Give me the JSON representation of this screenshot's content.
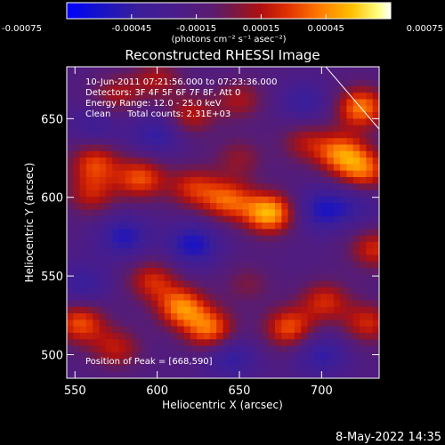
{
  "chart_data": {
    "type": "heatmap",
    "title": "Reconstructed RHESSI Image",
    "xlabel": "Heliocentric X (arcsec)",
    "ylabel": "Heliocentric Y (arcsec)",
    "xlim": [
      545,
      735
    ],
    "ylim": [
      485,
      683
    ],
    "x_ticks": [
      550,
      600,
      650,
      700
    ],
    "y_ticks": [
      500,
      550,
      600,
      650
    ],
    "colorbar": {
      "min": -0.00075,
      "max": 0.00075,
      "ticks": [
        "-0.00075",
        "-0.00045",
        "-0.00015",
        "0.00015",
        "0.00045",
        "0.00075"
      ],
      "units_label": "(photons cm⁻² s⁻¹ asec⁻²)",
      "stops": [
        {
          "v": 0.0,
          "color": "#0000ff"
        },
        {
          "v": 0.08,
          "color": "#1010d0"
        },
        {
          "v": 0.22,
          "color": "#3a1e9a"
        },
        {
          "v": 0.34,
          "color": "#4a1c8a"
        },
        {
          "v": 0.45,
          "color": "#5a1c70"
        },
        {
          "v": 0.52,
          "color": "#7a1840"
        },
        {
          "v": 0.6,
          "color": "#b01010"
        },
        {
          "v": 0.68,
          "color": "#e03000"
        },
        {
          "v": 0.78,
          "color": "#ff7a00"
        },
        {
          "v": 0.88,
          "color": "#ffc000"
        },
        {
          "v": 0.96,
          "color": "#ffff80"
        },
        {
          "v": 1.0,
          "color": "#ffffff"
        }
      ]
    },
    "sources": [
      {
        "x": 668,
        "y": 590,
        "amp": 0.00072
      },
      {
        "x": 643,
        "y": 598,
        "amp": 0.0005
      },
      {
        "x": 622,
        "y": 606,
        "amp": 0.0004
      },
      {
        "x": 590,
        "y": 612,
        "amp": 0.0005
      },
      {
        "x": 562,
        "y": 622,
        "amp": 0.00045
      },
      {
        "x": 560,
        "y": 602,
        "amp": 0.00035
      },
      {
        "x": 615,
        "y": 530,
        "amp": 0.0006
      },
      {
        "x": 632,
        "y": 516,
        "amp": 0.00055
      },
      {
        "x": 597,
        "y": 547,
        "amp": 0.0004
      },
      {
        "x": 553,
        "y": 520,
        "amp": 0.0005
      },
      {
        "x": 575,
        "y": 504,
        "amp": 0.00035
      },
      {
        "x": 680,
        "y": 517,
        "amp": 0.0005
      },
      {
        "x": 702,
        "y": 534,
        "amp": 0.0004
      },
      {
        "x": 728,
        "y": 520,
        "amp": 0.0004
      },
      {
        "x": 732,
        "y": 567,
        "amp": 0.0004
      },
      {
        "x": 712,
        "y": 628,
        "amp": 0.00055
      },
      {
        "x": 726,
        "y": 617,
        "amp": 0.0005
      },
      {
        "x": 724,
        "y": 657,
        "amp": 0.0006
      },
      {
        "x": 690,
        "y": 635,
        "amp": 0.0003
      },
      {
        "x": 620,
        "y": 652,
        "amp": 0.00035
      },
      {
        "x": 650,
        "y": 662,
        "amp": 0.0003
      },
      {
        "x": 575,
        "y": 665,
        "amp": 0.0003
      },
      {
        "x": 600,
        "y": 675,
        "amp": 0.0003
      },
      {
        "x": 650,
        "y": 625,
        "amp": 0.00025
      },
      {
        "x": 655,
        "y": 545,
        "amp": 0.0002
      },
      {
        "x": 580,
        "y": 575,
        "amp": -0.00035
      },
      {
        "x": 622,
        "y": 570,
        "amp": -0.0004
      },
      {
        "x": 700,
        "y": 592,
        "amp": -0.00035
      },
      {
        "x": 555,
        "y": 545,
        "amp": -0.00025
      },
      {
        "x": 645,
        "y": 498,
        "amp": -0.0003
      },
      {
        "x": 700,
        "y": 500,
        "amp": -0.0003
      },
      {
        "x": 690,
        "y": 660,
        "amp": -0.00025
      },
      {
        "x": 600,
        "y": 640,
        "amp": -0.0003
      },
      {
        "x": 563,
        "y": 645,
        "amp": -0.0002
      },
      {
        "x": 720,
        "y": 595,
        "amp": -0.0002
      }
    ],
    "annotations": {
      "time_range": "10-Jun-2011 07:21:56.000 to 07:23:36.000",
      "detectors": "Detectors: 3F 4F 5F 6F 7F 8F, Att 0",
      "energy_range": "Energy Range: 12.0 - 25.0 keV",
      "method": "Clean",
      "total_counts": "Total counts: 2.31E+03",
      "peak": "Position of Peak = [668,590]"
    }
  },
  "footer_date": "8-May-2022 14:35"
}
